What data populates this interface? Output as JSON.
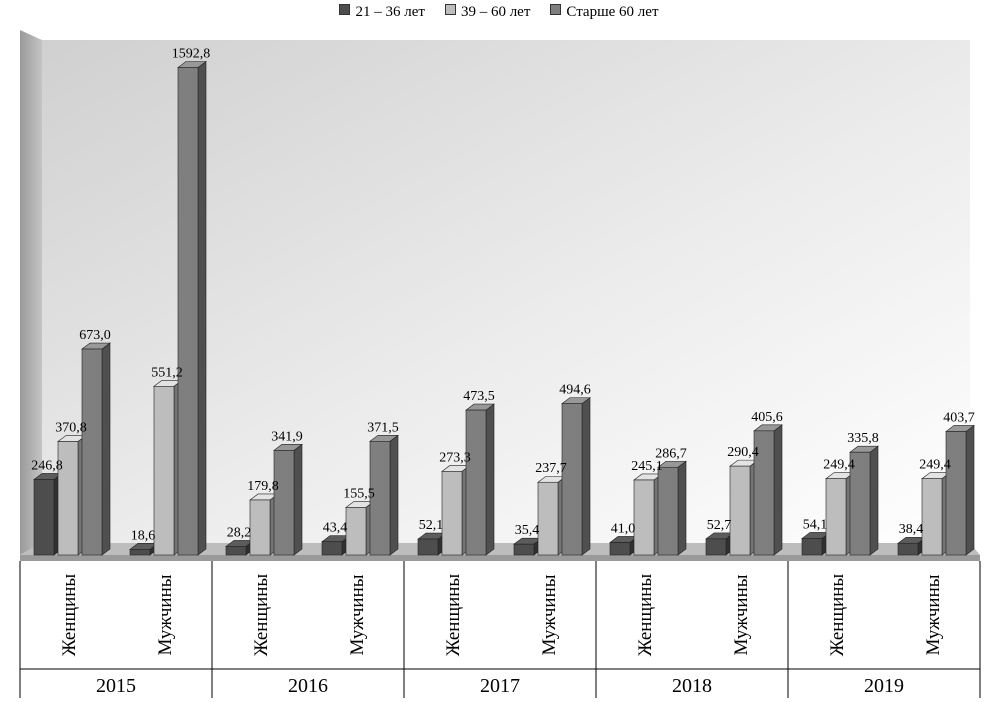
{
  "chart_data": {
    "type": "bar",
    "title": "",
    "xlabel": "",
    "ylabel": "",
    "ylim": [
      0,
      1650
    ],
    "grid": false,
    "legend_position": "top",
    "style": "3d",
    "years": [
      "2015",
      "2016",
      "2017",
      "2018",
      "2019"
    ],
    "genders": [
      "Женщины",
      "Мужчины"
    ],
    "series": [
      {
        "name": "21 – 36  лет",
        "color": "#4d4d4d",
        "values": [
          246.8,
          18.6,
          28.2,
          43.4,
          52.1,
          35.4,
          41.0,
          52.7,
          54.1,
          38.4
        ],
        "labels": [
          "246,8",
          "18,6",
          "28,2",
          "43,4",
          "52,1",
          "35,4",
          "41,0",
          "52,7",
          "54,1",
          "38,4"
        ]
      },
      {
        "name": "39 – 60 лет",
        "color": "#bdbdbd",
        "values": [
          370.8,
          551.2,
          179.8,
          155.5,
          273.3,
          237.7,
          245.1,
          290.4,
          249.4,
          249.4
        ],
        "labels": [
          "370,8",
          "551,2",
          "179,8",
          "155,5",
          "273,3",
          "237,7",
          "245,1",
          "290,4",
          "249,4",
          "249,4"
        ]
      },
      {
        "name": "Старше 60 лет",
        "color": "#7f7f7f",
        "values": [
          673.0,
          1592.8,
          341.9,
          371.5,
          473.5,
          494.6,
          286.7,
          405.6,
          335.8,
          403.7
        ],
        "labels": [
          "673,0",
          "1592,8",
          "341,9",
          "371,5",
          "473,5",
          "494,6",
          "286,7",
          "405,6",
          "335,8",
          "403,7"
        ]
      }
    ]
  }
}
